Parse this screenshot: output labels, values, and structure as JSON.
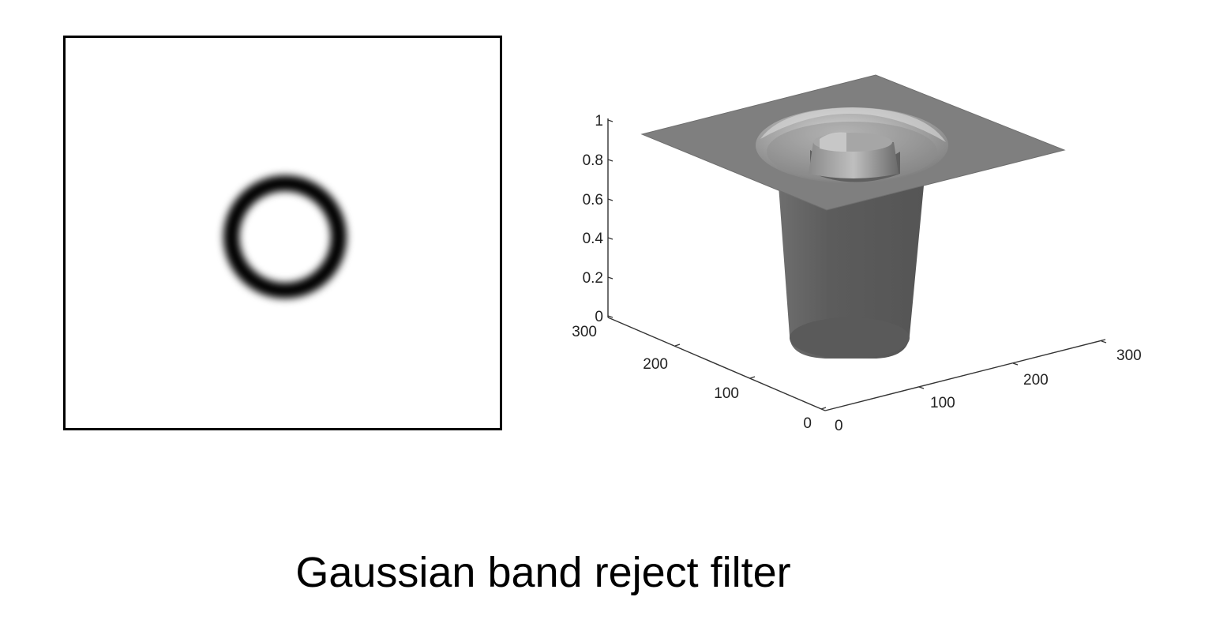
{
  "caption": "Gaussian band reject filter",
  "filter_image": {
    "background": "#ffffff",
    "ring_color": "#000000",
    "border_color": "#000000"
  },
  "surface_plot": {
    "z_ticks": [
      "1",
      "0.8",
      "0.6",
      "0.4",
      "0.2",
      "0"
    ],
    "left_axis_ticks": [
      "300",
      "200",
      "100",
      "0"
    ],
    "right_axis_ticks": [
      "0",
      "100",
      "200",
      "300"
    ],
    "surface_color": "#7f7f7f",
    "shadow_color": "#5a5a5a",
    "highlight_color": "#bdbdbd"
  }
}
